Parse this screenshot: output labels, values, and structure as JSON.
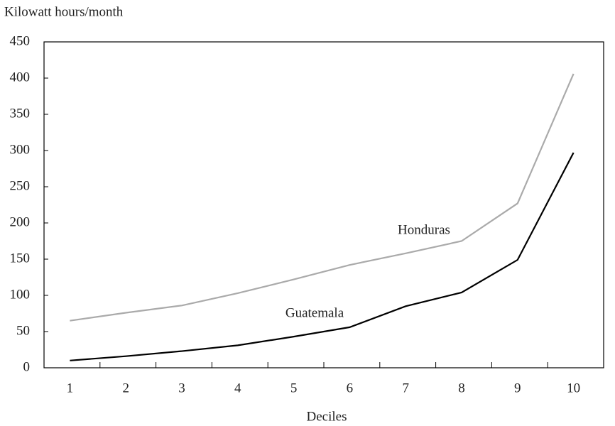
{
  "chart_data": {
    "type": "line",
    "y_axis_label": "Kilowatt hours/month",
    "x_axis_label": "Deciles",
    "categories": [
      "1",
      "2",
      "3",
      "4",
      "5",
      "6",
      "7",
      "8",
      "9",
      "10"
    ],
    "series": [
      {
        "name": "Honduras",
        "color": "#aaaaaa",
        "values": [
          65,
          76,
          86,
          103,
          122,
          142,
          158,
          175,
          227,
          406
        ]
      },
      {
        "name": "Guatemala",
        "color": "#000000",
        "values": [
          10,
          16,
          23,
          31,
          43,
          56,
          85,
          104,
          149,
          297
        ]
      }
    ],
    "ylim": [
      0,
      450
    ],
    "yticks": [
      0,
      50,
      100,
      150,
      200,
      250,
      300,
      350,
      400,
      450
    ],
    "grid": false
  }
}
